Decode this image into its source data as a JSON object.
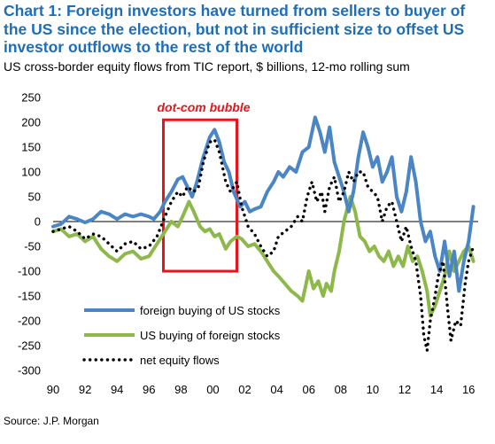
{
  "title": "Chart 1: Foreign investors have turned from sellers to buyer of the US since the election, but not in sufficient size to offset US investor outflows to the rest of the world",
  "subtitle": "US cross-border equity flows from TIC report, $ billions, 12-mo rolling sum",
  "source": "Source: J.P. Morgan",
  "annotation": "dot-com bubble",
  "colors": {
    "title": "#1f6db5",
    "foreign": "#4a86c5",
    "us": "#8db84a",
    "net": "#000000",
    "annotation": "#e8141b"
  },
  "chart_data": {
    "type": "line",
    "title": "",
    "xlabel": "",
    "ylabel": "",
    "xlim": [
      1990,
      2016.6
    ],
    "ylim": [
      -300,
      250
    ],
    "x_ticks": [
      "90",
      "92",
      "94",
      "96",
      "98",
      "00",
      "02",
      "04",
      "06",
      "08",
      "10",
      "12",
      "14",
      "16"
    ],
    "y_ticks": [
      "250",
      "200",
      "150",
      "100",
      "50",
      "0",
      "-50",
      "-100",
      "-150",
      "-200",
      "-250",
      "-300"
    ],
    "legend_position": "bottom-left",
    "highlight": {
      "label": "dot-com bubble",
      "x_range": [
        1996.9,
        2001.5
      ],
      "y_range": [
        -100,
        205
      ]
    },
    "series": [
      {
        "name": "foreign buying of US stocks",
        "points": [
          [
            1990.0,
            -10
          ],
          [
            1990.5,
            -5
          ],
          [
            1991.0,
            10
          ],
          [
            1991.5,
            5
          ],
          [
            1992.0,
            -2
          ],
          [
            1992.5,
            5
          ],
          [
            1993.0,
            20
          ],
          [
            1993.5,
            15
          ],
          [
            1994.0,
            5
          ],
          [
            1994.5,
            15
          ],
          [
            1995.0,
            10
          ],
          [
            1995.5,
            15
          ],
          [
            1996.0,
            10
          ],
          [
            1996.3,
            5
          ],
          [
            1996.7,
            20
          ],
          [
            1997.0,
            40
          ],
          [
            1997.4,
            60
          ],
          [
            1997.8,
            85
          ],
          [
            1998.1,
            90
          ],
          [
            1998.4,
            70
          ],
          [
            1998.7,
            50
          ],
          [
            1999.0,
            80
          ],
          [
            1999.4,
            130
          ],
          [
            1999.8,
            170
          ],
          [
            2000.1,
            185
          ],
          [
            2000.4,
            160
          ],
          [
            2000.7,
            120
          ],
          [
            2001.0,
            100
          ],
          [
            2001.3,
            60
          ],
          [
            2001.7,
            30
          ],
          [
            2002.0,
            40
          ],
          [
            2002.3,
            20
          ],
          [
            2002.6,
            25
          ],
          [
            2003.0,
            30
          ],
          [
            2003.4,
            60
          ],
          [
            2003.8,
            80
          ],
          [
            2004.1,
            100
          ],
          [
            2004.4,
            90
          ],
          [
            2004.8,
            110
          ],
          [
            2005.2,
            100
          ],
          [
            2005.6,
            140
          ],
          [
            2006.0,
            150
          ],
          [
            2006.4,
            210
          ],
          [
            2006.7,
            180
          ],
          [
            2007.0,
            140
          ],
          [
            2007.3,
            190
          ],
          [
            2007.6,
            120
          ],
          [
            2007.9,
            90
          ],
          [
            2008.2,
            60
          ],
          [
            2008.5,
            20
          ],
          [
            2008.8,
            60
          ],
          [
            2009.1,
            130
          ],
          [
            2009.4,
            180
          ],
          [
            2009.7,
            150
          ],
          [
            2010.0,
            110
          ],
          [
            2010.3,
            130
          ],
          [
            2010.6,
            80
          ],
          [
            2010.9,
            100
          ],
          [
            2011.2,
            130
          ],
          [
            2011.5,
            50
          ],
          [
            2011.8,
            20
          ],
          [
            2012.1,
            60
          ],
          [
            2012.4,
            130
          ],
          [
            2012.7,
            80
          ],
          [
            2013.0,
            0
          ],
          [
            2013.3,
            -40
          ],
          [
            2013.6,
            -20
          ],
          [
            2013.9,
            -70
          ],
          [
            2014.2,
            -100
          ],
          [
            2014.5,
            -40
          ],
          [
            2014.8,
            -110
          ],
          [
            2015.1,
            -60
          ],
          [
            2015.4,
            -140
          ],
          [
            2015.7,
            -80
          ],
          [
            2016.0,
            -40
          ],
          [
            2016.3,
            30
          ]
        ]
      },
      {
        "name": "US buying of foreign stocks",
        "points": [
          [
            1990.0,
            -20
          ],
          [
            1990.5,
            -15
          ],
          [
            1991.0,
            -30
          ],
          [
            1991.5,
            -25
          ],
          [
            1992.0,
            -40
          ],
          [
            1992.5,
            -30
          ],
          [
            1993.0,
            -55
          ],
          [
            1993.5,
            -70
          ],
          [
            1994.0,
            -80
          ],
          [
            1994.5,
            -65
          ],
          [
            1995.0,
            -60
          ],
          [
            1995.5,
            -75
          ],
          [
            1996.0,
            -70
          ],
          [
            1996.5,
            -45
          ],
          [
            1997.0,
            -20
          ],
          [
            1997.4,
            0
          ],
          [
            1997.8,
            -10
          ],
          [
            1998.1,
            10
          ],
          [
            1998.5,
            40
          ],
          [
            1998.8,
            20
          ],
          [
            1999.2,
            -10
          ],
          [
            1999.5,
            -20
          ],
          [
            1999.8,
            -15
          ],
          [
            2000.1,
            -30
          ],
          [
            2000.4,
            -25
          ],
          [
            2000.8,
            -55
          ],
          [
            2001.1,
            -40
          ],
          [
            2001.5,
            -30
          ],
          [
            2001.8,
            -35
          ],
          [
            2002.2,
            -50
          ],
          [
            2002.6,
            -45
          ],
          [
            2003.0,
            -60
          ],
          [
            2003.4,
            -80
          ],
          [
            2003.8,
            -100
          ],
          [
            2004.1,
            -110
          ],
          [
            2004.5,
            -125
          ],
          [
            2004.9,
            -140
          ],
          [
            2005.3,
            -150
          ],
          [
            2005.6,
            -160
          ],
          [
            2006.0,
            -100
          ],
          [
            2006.3,
            -135
          ],
          [
            2006.6,
            -120
          ],
          [
            2006.9,
            -150
          ],
          [
            2007.1,
            -125
          ],
          [
            2007.4,
            -140
          ],
          [
            2007.6,
            -100
          ],
          [
            2007.9,
            -60
          ],
          [
            2008.2,
            0
          ],
          [
            2008.6,
            50
          ],
          [
            2008.9,
            20
          ],
          [
            2009.2,
            -30
          ],
          [
            2009.5,
            -40
          ],
          [
            2009.8,
            -60
          ],
          [
            2010.1,
            -50
          ],
          [
            2010.4,
            -70
          ],
          [
            2010.7,
            -80
          ],
          [
            2011.0,
            -60
          ],
          [
            2011.3,
            -90
          ],
          [
            2011.6,
            -70
          ],
          [
            2011.9,
            -90
          ],
          [
            2012.2,
            -50
          ],
          [
            2012.5,
            -80
          ],
          [
            2012.8,
            -70
          ],
          [
            2013.1,
            -100
          ],
          [
            2013.4,
            -140
          ],
          [
            2013.6,
            -190
          ],
          [
            2013.9,
            -170
          ],
          [
            2014.2,
            -140
          ],
          [
            2014.5,
            -110
          ],
          [
            2014.8,
            -60
          ],
          [
            2015.1,
            -100
          ],
          [
            2015.4,
            -80
          ],
          [
            2015.7,
            -60
          ],
          [
            2016.0,
            -50
          ],
          [
            2016.3,
            -80
          ]
        ]
      },
      {
        "name": "net equity flows",
        "points": [
          [
            1990.0,
            -20
          ],
          [
            1990.5,
            -15
          ],
          [
            1991.0,
            -10
          ],
          [
            1991.5,
            -20
          ],
          [
            1992.0,
            -35
          ],
          [
            1992.5,
            -25
          ],
          [
            1993.0,
            -30
          ],
          [
            1993.5,
            -45
          ],
          [
            1994.0,
            -60
          ],
          [
            1994.5,
            -45
          ],
          [
            1995.0,
            -40
          ],
          [
            1995.5,
            -55
          ],
          [
            1996.0,
            -50
          ],
          [
            1996.5,
            -30
          ],
          [
            1997.0,
            10
          ],
          [
            1997.4,
            40
          ],
          [
            1997.8,
            60
          ],
          [
            1998.1,
            50
          ],
          [
            1998.4,
            70
          ],
          [
            1998.8,
            60
          ],
          [
            1999.1,
            70
          ],
          [
            1999.4,
            120
          ],
          [
            1999.8,
            160
          ],
          [
            2000.1,
            165
          ],
          [
            2000.4,
            140
          ],
          [
            2000.8,
            80
          ],
          [
            2001.1,
            60
          ],
          [
            2001.5,
            80
          ],
          [
            2001.8,
            30
          ],
          [
            2002.2,
            -10
          ],
          [
            2002.6,
            -25
          ],
          [
            2003.0,
            -50
          ],
          [
            2003.4,
            -70
          ],
          [
            2003.8,
            -60
          ],
          [
            2004.1,
            -30
          ],
          [
            2004.5,
            -20
          ],
          [
            2004.9,
            -10
          ],
          [
            2005.3,
            10
          ],
          [
            2005.6,
            0
          ],
          [
            2005.9,
            50
          ],
          [
            2006.2,
            80
          ],
          [
            2006.5,
            40
          ],
          [
            2006.8,
            60
          ],
          [
            2007.0,
            20
          ],
          [
            2007.3,
            70
          ],
          [
            2007.6,
            90
          ],
          [
            2007.9,
            40
          ],
          [
            2008.2,
            60
          ],
          [
            2008.5,
            100
          ],
          [
            2008.8,
            80
          ],
          [
            2009.1,
            100
          ],
          [
            2009.4,
            100
          ],
          [
            2009.7,
            70
          ],
          [
            2010.0,
            60
          ],
          [
            2010.3,
            50
          ],
          [
            2010.6,
            0
          ],
          [
            2010.9,
            30
          ],
          [
            2011.2,
            40
          ],
          [
            2011.5,
            0
          ],
          [
            2011.8,
            -40
          ],
          [
            2012.1,
            -10
          ],
          [
            2012.4,
            -50
          ],
          [
            2012.7,
            -80
          ],
          [
            2013.0,
            -150
          ],
          [
            2013.2,
            -230
          ],
          [
            2013.4,
            -260
          ],
          [
            2013.6,
            -200
          ],
          [
            2013.9,
            -150
          ],
          [
            2014.1,
            -110
          ],
          [
            2014.4,
            -80
          ],
          [
            2014.7,
            -180
          ],
          [
            2014.9,
            -240
          ],
          [
            2015.2,
            -200
          ],
          [
            2015.5,
            -210
          ],
          [
            2015.8,
            -120
          ],
          [
            2016.0,
            -80
          ],
          [
            2016.3,
            -50
          ]
        ]
      }
    ]
  }
}
